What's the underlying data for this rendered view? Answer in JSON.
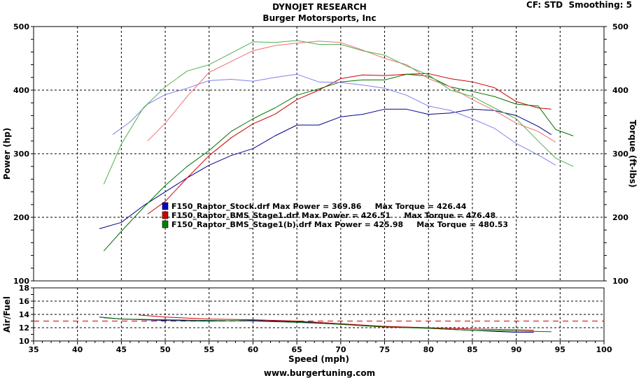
{
  "header": {
    "title": "DYNOJET RESEARCH",
    "subtitle": "Burger Motorsports, Inc",
    "settings": "CF: STD  Smoothing: 5",
    "footer": "www.burgertuning.com"
  },
  "chart_data": [
    {
      "type": "line",
      "xlabel": "Speed (mph)",
      "ylabel": "Power (hp)",
      "y2label": "Torque (ft-lbs)",
      "xlim": [
        35,
        100
      ],
      "ylim": [
        100,
        500
      ],
      "y2lim": [
        100,
        500
      ],
      "xticks": [
        "35",
        "40",
        "45",
        "50",
        "55",
        "60",
        "65",
        "70",
        "75",
        "80",
        "85",
        "90",
        "95",
        "100"
      ],
      "yticks": [
        "100",
        "200",
        "300",
        "400",
        "500"
      ],
      "y2ticks": [
        "100",
        "200",
        "300",
        "400",
        "500"
      ],
      "grid": true,
      "legend": [
        {
          "text": "F150_Raptor_Stock.drf Max Power = 369.86     Max Torque = 426.44",
          "color": "#0000cc"
        },
        {
          "text": "F150_Raptor_BMS_Stage1.drf Max Power = 426.51     Max Torque = 476.48",
          "color": "#cc0000"
        },
        {
          "text": "F150_Raptor_BMS_Stage1(b).drf Max Power = 425.98     Max Torque = 480.53",
          "color": "#008000"
        }
      ],
      "series": [
        {
          "color": "#00008b",
          "kind": "power",
          "points": [
            [
              42.5,
              182
            ],
            [
              45,
              192
            ],
            [
              47.5,
              218
            ],
            [
              50,
              240
            ],
            [
              52.5,
              262
            ],
            [
              55,
              282
            ],
            [
              57.5,
              297
            ],
            [
              60,
              308
            ],
            [
              62.5,
              328
            ],
            [
              65,
              345
            ],
            [
              67.5,
              345
            ],
            [
              70,
              358
            ],
            [
              72.5,
              362
            ],
            [
              75,
              370
            ],
            [
              77.5,
              370
            ],
            [
              80,
              362
            ],
            [
              82.5,
              364
            ],
            [
              85,
              370
            ],
            [
              87.5,
              368
            ],
            [
              90,
              360
            ],
            [
              92.5,
              343
            ],
            [
              94,
              330
            ]
          ]
        },
        {
          "color": "#cc0000",
          "kind": "power",
          "points": [
            [
              48,
              205
            ],
            [
              50,
              225
            ],
            [
              52.5,
              262
            ],
            [
              55,
              297
            ],
            [
              57.5,
              325
            ],
            [
              60,
              347
            ],
            [
              62.5,
              362
            ],
            [
              65,
              385
            ],
            [
              67.5,
              400
            ],
            [
              70,
              418
            ],
            [
              72.5,
              424
            ],
            [
              75,
              423
            ],
            [
              77.5,
              425
            ],
            [
              80,
              426
            ],
            [
              82.5,
              418
            ],
            [
              85,
              413
            ],
            [
              87.5,
              404
            ],
            [
              90,
              382
            ],
            [
              92.5,
              372
            ],
            [
              94,
              370
            ]
          ]
        },
        {
          "color": "#007000",
          "kind": "power",
          "points": [
            [
              43,
              147
            ],
            [
              45,
              178
            ],
            [
              47.5,
              215
            ],
            [
              50,
              250
            ],
            [
              52.5,
              280
            ],
            [
              55,
              305
            ],
            [
              57.5,
              335
            ],
            [
              60,
              355
            ],
            [
              62.5,
              372
            ],
            [
              65,
              392
            ],
            [
              67.5,
              402
            ],
            [
              70,
              413
            ],
            [
              72.5,
              416
            ],
            [
              75,
              416
            ],
            [
              77.5,
              425
            ],
            [
              80,
              422
            ],
            [
              82.5,
              405
            ],
            [
              85,
              398
            ],
            [
              87.5,
              390
            ],
            [
              90,
              378
            ],
            [
              92.5,
              375
            ],
            [
              94.5,
              338
            ],
            [
              96.5,
              328
            ]
          ]
        },
        {
          "color": "#8080ee",
          "kind": "torque",
          "points": [
            [
              44,
              330
            ],
            [
              46,
              350
            ],
            [
              48,
              378
            ],
            [
              50,
              393
            ],
            [
              52.5,
              403
            ],
            [
              55,
              415
            ],
            [
              57.5,
              417
            ],
            [
              60,
              414
            ],
            [
              62.5,
              420
            ],
            [
              65,
              425
            ],
            [
              67.5,
              413
            ],
            [
              70,
              412
            ],
            [
              72.5,
              408
            ],
            [
              75,
              403
            ],
            [
              77.5,
              392
            ],
            [
              80,
              375
            ],
            [
              82.5,
              368
            ],
            [
              85,
              355
            ],
            [
              87.5,
              340
            ],
            [
              90,
              316
            ],
            [
              92.5,
              298
            ],
            [
              94.5,
              282
            ]
          ]
        },
        {
          "color": "#ee7070",
          "kind": "torque",
          "points": [
            [
              48,
              320
            ],
            [
              50,
              348
            ],
            [
              52.5,
              390
            ],
            [
              55,
              428
            ],
            [
              57.5,
              445
            ],
            [
              60,
              462
            ],
            [
              62.5,
              470
            ],
            [
              65,
              474
            ],
            [
              67.5,
              477
            ],
            [
              70,
              475
            ],
            [
              72.5,
              463
            ],
            [
              75,
              450
            ],
            [
              77.5,
              440
            ],
            [
              80,
              418
            ],
            [
              82.5,
              405
            ],
            [
              85,
              385
            ],
            [
              87.5,
              368
            ],
            [
              90,
              348
            ],
            [
              92.5,
              335
            ],
            [
              94.5,
              318
            ]
          ]
        },
        {
          "color": "#50b050",
          "kind": "torque",
          "points": [
            [
              43,
              252
            ],
            [
              45,
              315
            ],
            [
              47.5,
              372
            ],
            [
              50,
              405
            ],
            [
              52.5,
              430
            ],
            [
              55,
              440
            ],
            [
              57.5,
              458
            ],
            [
              60,
              476
            ],
            [
              62.5,
              475
            ],
            [
              65,
              478
            ],
            [
              67.5,
              472
            ],
            [
              70,
              472
            ],
            [
              72.5,
              462
            ],
            [
              75,
              455
            ],
            [
              77.5,
              438
            ],
            [
              80,
              424
            ],
            [
              82.5,
              400
            ],
            [
              85,
              390
            ],
            [
              87.5,
              372
            ],
            [
              90,
              355
            ],
            [
              92.5,
              320
            ],
            [
              94.5,
              293
            ],
            [
              96.5,
              280
            ]
          ]
        }
      ]
    },
    {
      "type": "line",
      "xlabel": "Speed (mph)",
      "ylabel": "Air/Fuel",
      "xlim": [
        35,
        100
      ],
      "ylim": [
        10,
        18
      ],
      "yticks": [
        "10",
        "12",
        "14",
        "16",
        "18"
      ],
      "reference_line": 13,
      "grid": true,
      "series": [
        {
          "color": "#00008b",
          "points": [
            [
              42.5,
              13.6
            ],
            [
              45,
              13.3
            ],
            [
              50,
              13.1
            ],
            [
              55,
              13.0
            ],
            [
              60,
              13.1
            ],
            [
              65,
              12.9
            ],
            [
              70,
              12.5
            ],
            [
              75,
              12.2
            ],
            [
              80,
              11.9
            ],
            [
              85,
              11.6
            ],
            [
              90,
              11.3
            ],
            [
              92,
              11.3
            ]
          ]
        },
        {
          "color": "#cc0000",
          "points": [
            [
              47,
              13.9
            ],
            [
              50,
              13.6
            ],
            [
              55,
              13.3
            ],
            [
              60,
              13.2
            ],
            [
              65,
              13.0
            ],
            [
              70,
              12.6
            ],
            [
              75,
              12.2
            ],
            [
              80,
              12.0
            ],
            [
              85,
              11.8
            ],
            [
              90,
              11.7
            ],
            [
              92,
              11.6
            ]
          ]
        },
        {
          "color": "#007000",
          "points": [
            [
              43,
              13.5
            ],
            [
              45,
              13.3
            ],
            [
              50,
              13.2
            ],
            [
              55,
              13.1
            ],
            [
              60,
              13.0
            ],
            [
              65,
              12.8
            ],
            [
              70,
              12.5
            ],
            [
              75,
              12.1
            ],
            [
              80,
              11.9
            ],
            [
              85,
              11.6
            ],
            [
              90,
              11.5
            ],
            [
              94,
              11.4
            ]
          ]
        }
      ]
    }
  ]
}
